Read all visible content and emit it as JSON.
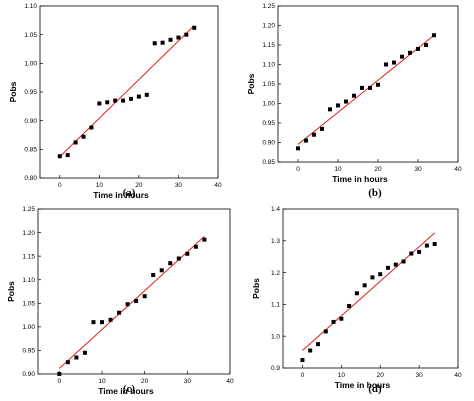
{
  "chart_data": [
    {
      "type": "scatter",
      "panel_label": "(a)",
      "xlabel": "Time in hours",
      "ylabel": "Pobs",
      "xlim": [
        -5,
        40
      ],
      "ylim": [
        0.8,
        1.1
      ],
      "x_ticks": [
        "0",
        "10",
        "20",
        "30",
        "40"
      ],
      "y_ticks": [
        "0.80",
        "0.85",
        "0.90",
        "0.95",
        "1.00",
        "1.05",
        "1.10"
      ],
      "series": [
        {
          "marker": "square",
          "color": "#000000",
          "x": [
            0,
            2,
            4,
            6,
            8,
            10,
            12,
            14,
            16,
            18,
            20,
            22,
            24,
            26,
            28,
            30,
            32,
            34
          ],
          "y": [
            0.838,
            0.84,
            0.862,
            0.872,
            0.888,
            0.93,
            0.932,
            0.935,
            0.935,
            0.938,
            0.942,
            0.945,
            1.035,
            1.036,
            1.041,
            1.045,
            1.05,
            1.062
          ]
        }
      ],
      "fit_line": {
        "color": "#e02020",
        "x": [
          0,
          34
        ],
        "y": [
          0.837,
          1.066
        ]
      },
      "grid": false
    },
    {
      "type": "scatter",
      "panel_label": "(b)",
      "xlabel": "Time in hours",
      "ylabel": "Pobs",
      "xlim": [
        -5,
        40
      ],
      "ylim": [
        0.85,
        1.25
      ],
      "x_ticks": [
        "0",
        "10",
        "20",
        "30",
        "40"
      ],
      "y_ticks": [
        "0.85",
        "0.90",
        "0.95",
        "1.00",
        "1.05",
        "1.10",
        "1.15",
        "1.20",
        "1.25"
      ],
      "series": [
        {
          "marker": "square",
          "color": "#000000",
          "x": [
            0,
            2,
            4,
            6,
            8,
            10,
            12,
            14,
            16,
            18,
            20,
            22,
            24,
            26,
            28,
            30,
            32,
            34
          ],
          "y": [
            0.885,
            0.905,
            0.92,
            0.935,
            0.985,
            0.995,
            1.005,
            1.02,
            1.04,
            1.04,
            1.048,
            1.1,
            1.105,
            1.12,
            1.13,
            1.14,
            1.15,
            1.175
          ]
        }
      ],
      "fit_line": {
        "color": "#e02020",
        "x": [
          0,
          34
        ],
        "y": [
          0.895,
          1.175
        ]
      },
      "grid": false
    },
    {
      "type": "scatter",
      "panel_label": "(c)",
      "xlabel": "Time in hours",
      "ylabel": "Pobs",
      "xlim": [
        -5,
        40
      ],
      "ylim": [
        0.9,
        1.25
      ],
      "x_ticks": [
        "0",
        "10",
        "20",
        "30",
        "40"
      ],
      "y_ticks": [
        "0.90",
        "0.95",
        "1.00",
        "1.05",
        "1.10",
        "1.15",
        "1.20",
        "1.25"
      ],
      "series": [
        {
          "marker": "square",
          "color": "#000000",
          "x": [
            0,
            2,
            4,
            6,
            8,
            10,
            12,
            14,
            16,
            18,
            20,
            22,
            24,
            26,
            28,
            30,
            32,
            34
          ],
          "y": [
            0.9,
            0.925,
            0.935,
            0.945,
            1.01,
            1.01,
            1.015,
            1.03,
            1.048,
            1.055,
            1.065,
            1.11,
            1.12,
            1.135,
            1.145,
            1.155,
            1.17,
            1.185
          ]
        }
      ],
      "fit_line": {
        "color": "#e02020",
        "x": [
          0,
          34
        ],
        "y": [
          0.912,
          1.192
        ]
      },
      "grid": false
    },
    {
      "type": "scatter",
      "panel_label": "(d)",
      "xlabel": "Time in hours",
      "ylabel": "Pobs",
      "xlim": [
        -5,
        40
      ],
      "ylim": [
        0.9,
        1.4
      ],
      "x_ticks": [
        "0",
        "10",
        "20",
        "30",
        "40"
      ],
      "y_ticks": [
        "0.9",
        "1.0",
        "1.1",
        "1.2",
        "1.3",
        "1.4"
      ],
      "series": [
        {
          "marker": "square",
          "color": "#000000",
          "x": [
            0,
            2,
            4,
            6,
            8,
            10,
            12,
            14,
            16,
            18,
            20,
            22,
            24,
            26,
            28,
            30,
            32,
            34
          ],
          "y": [
            0.925,
            0.955,
            0.975,
            1.015,
            1.045,
            1.055,
            1.095,
            1.135,
            1.16,
            1.185,
            1.195,
            1.215,
            1.225,
            1.235,
            1.26,
            1.265,
            1.285,
            1.29
          ]
        }
      ],
      "fit_line": {
        "color": "#e02020",
        "x": [
          0,
          34
        ],
        "y": [
          0.955,
          1.325
        ]
      },
      "grid": false
    }
  ]
}
